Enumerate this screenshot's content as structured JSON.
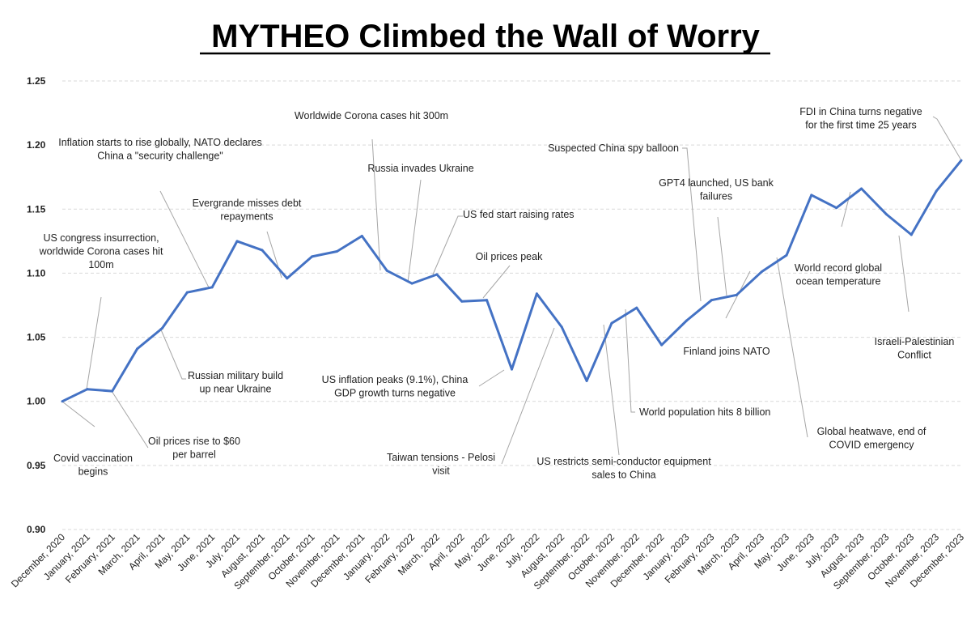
{
  "chart_data": {
    "type": "line",
    "title": "MYTHEO Climbed the Wall of Worry",
    "xlabel": "",
    "ylabel": "",
    "ylim": [
      0.9,
      1.25
    ],
    "yticks": [
      "0.90",
      "0.95",
      "1.00",
      "1.05",
      "1.10",
      "1.15",
      "1.20",
      "1.25"
    ],
    "grid": true,
    "legend": "none",
    "color": "#4472C4",
    "categories": [
      "December, 2020",
      "January, 2021",
      "February, 2021",
      "March, 2021",
      "April, 2021",
      "May, 2021",
      "June, 2021",
      "July, 2021",
      "August, 2021",
      "September, 2021",
      "October, 2021",
      "November, 2021",
      "December, 2021",
      "January, 2022",
      "February, 2022",
      "March, 2022",
      "April, 2022",
      "May, 2022",
      "June, 2022",
      "July, 2022",
      "August, 2022",
      "September, 2022",
      "October, 2022",
      "November, 2022",
      "December, 2022",
      "January, 2023",
      "February, 2023",
      "March, 2023",
      "April, 2023",
      "May, 2023",
      "June, 2023",
      "July, 2023",
      "August, 2023",
      "September, 2023",
      "October, 2023",
      "November, 2023",
      "December, 2023"
    ],
    "values": [
      1.0,
      1.0095,
      1.008,
      1.041,
      1.057,
      1.085,
      1.089,
      1.125,
      1.118,
      1.096,
      1.113,
      1.117,
      1.129,
      1.102,
      1.092,
      1.099,
      1.078,
      1.079,
      1.025,
      1.084,
      1.058,
      1.016,
      1.061,
      1.073,
      1.044,
      1.063,
      1.079,
      1.083,
      1.101,
      1.114,
      1.161,
      1.151,
      1.166,
      1.146,
      1.13,
      1.164,
      1.188
    ],
    "annotations": [
      {
        "month": 0,
        "lines": [
          "Covid vaccination",
          "begins"
        ]
      },
      {
        "month": 2,
        "lines": [
          "Oil prices rise to $60",
          "per barrel"
        ]
      },
      {
        "month": 1,
        "lines": [
          "US congress insurrection,",
          "worldwide Corona cases hit",
          "100m"
        ]
      },
      {
        "month": 6,
        "lines": [
          "Inflation starts to rise globally, NATO declares",
          "China a \"security challenge\""
        ]
      },
      {
        "month": 4,
        "lines": [
          "Russian military build",
          "up near Ukraine"
        ]
      },
      {
        "month": 9,
        "lines": [
          "Evergrande misses debt",
          "repayments"
        ]
      },
      {
        "month": 13,
        "lines": [
          "Worldwide Corona cases hit 300m"
        ]
      },
      {
        "month": 14,
        "lines": [
          "Russia invades Ukraine"
        ]
      },
      {
        "month": 15,
        "lines": [
          "US fed start raising rates"
        ]
      },
      {
        "month": 17,
        "lines": [
          "Oil prices peak"
        ]
      },
      {
        "month": 18,
        "lines": [
          "US inflation peaks (9.1%), China",
          "GDP growth turns negative"
        ]
      },
      {
        "month": 20,
        "lines": [
          "Taiwan tensions - Pelosi",
          "visit"
        ]
      },
      {
        "month": 22,
        "lines": [
          "US restricts semi-conductor equipment",
          "sales to China"
        ]
      },
      {
        "month": 23,
        "lines": [
          "World population hits 8 billion"
        ]
      },
      {
        "month": 26,
        "lines": [
          "Suspected China spy balloon"
        ]
      },
      {
        "month": 27,
        "lines": [
          "GPT4 launched, US bank",
          "failures"
        ]
      },
      {
        "month": 28,
        "lines": [
          "Finland joins NATO"
        ]
      },
      {
        "month": 32,
        "lines": [
          "World record global",
          "ocean temperature"
        ]
      },
      {
        "month": 29,
        "lines": [
          "Global heatwave, end of",
          "COVID emergency"
        ]
      },
      {
        "month": 34,
        "lines": [
          "Israeli-Palestinian",
          "Conflict"
        ]
      },
      {
        "month": 36,
        "lines": [
          "FDI in China turns negative",
          "for the first time 25 years"
        ]
      }
    ]
  }
}
